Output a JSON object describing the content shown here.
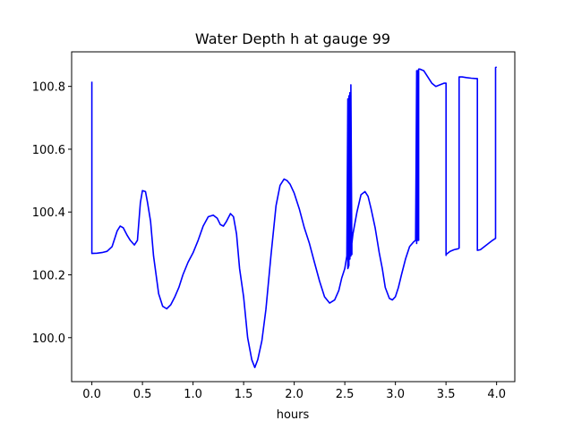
{
  "chart_data": {
    "type": "line",
    "title": "Water Depth h at gauge 99",
    "xlabel": "hours",
    "ylabel": "",
    "xlim": [
      -0.2,
      4.18
    ],
    "ylim": [
      99.86,
      100.91
    ],
    "xticks": [
      0.0,
      0.5,
      1.0,
      1.5,
      2.0,
      2.5,
      3.0,
      3.5,
      4.0
    ],
    "xtick_labels": [
      "0.0",
      "0.5",
      "1.0",
      "1.5",
      "2.0",
      "2.5",
      "3.0",
      "3.5",
      "4.0"
    ],
    "yticks": [
      100.0,
      100.2,
      100.4,
      100.6,
      100.8
    ],
    "ytick_labels": [
      "100.0",
      "100.2",
      "100.4",
      "100.6",
      "100.8"
    ],
    "grid": false,
    "legend": "none",
    "series": [
      {
        "color": "#0000ff",
        "x": [
          0.0,
          0.0,
          0.0,
          0.05,
          0.1,
          0.15,
          0.2,
          0.25,
          0.28,
          0.31,
          0.35,
          0.38,
          0.42,
          0.45,
          0.48,
          0.5,
          0.53,
          0.55,
          0.58,
          0.61,
          0.66,
          0.7,
          0.74,
          0.78,
          0.82,
          0.86,
          0.9,
          0.95,
          1.0,
          1.05,
          1.1,
          1.15,
          1.2,
          1.24,
          1.27,
          1.3,
          1.33,
          1.37,
          1.4,
          1.43,
          1.46,
          1.5,
          1.54,
          1.58,
          1.61,
          1.64,
          1.68,
          1.72,
          1.77,
          1.82,
          1.86,
          1.9,
          1.93,
          1.96,
          2.0,
          2.05,
          2.1,
          2.15,
          2.2,
          2.25,
          2.3,
          2.35,
          2.4,
          2.44,
          2.47,
          2.5,
          2.52,
          2.53,
          2.53,
          2.54,
          2.54,
          2.55,
          2.55,
          2.56,
          2.56,
          2.57,
          2.57,
          2.58,
          2.62,
          2.66,
          2.7,
          2.73,
          2.76,
          2.8,
          2.84,
          2.87,
          2.9,
          2.94,
          2.97,
          3.0,
          3.03,
          3.06,
          3.1,
          3.14,
          3.18,
          3.2,
          3.21,
          3.21,
          3.22,
          3.22,
          3.23,
          3.23,
          3.23,
          3.24,
          3.28,
          3.32,
          3.36,
          3.4,
          3.44,
          3.48,
          3.5,
          3.5,
          3.5,
          3.54,
          3.58,
          3.62,
          3.63,
          3.63,
          3.66,
          3.7,
          3.75,
          3.8,
          3.81,
          3.81,
          3.84,
          3.88,
          3.92,
          3.96,
          3.99,
          3.99,
          4.0
        ],
        "y": [
          100.815,
          100.27,
          100.268,
          100.269,
          100.271,
          100.275,
          100.29,
          100.34,
          100.355,
          100.35,
          100.325,
          100.31,
          100.295,
          100.31,
          100.43,
          100.468,
          100.465,
          100.43,
          100.37,
          100.26,
          100.14,
          100.1,
          100.092,
          100.105,
          100.13,
          100.16,
          100.2,
          100.24,
          100.27,
          100.31,
          100.355,
          100.385,
          100.39,
          100.38,
          100.36,
          100.355,
          100.37,
          100.395,
          100.385,
          100.33,
          100.22,
          100.13,
          100.0,
          99.93,
          99.905,
          99.93,
          99.99,
          100.09,
          100.26,
          100.42,
          100.485,
          100.505,
          100.5,
          100.488,
          100.46,
          100.41,
          100.35,
          100.3,
          100.24,
          100.18,
          100.13,
          100.11,
          100.12,
          100.15,
          100.19,
          100.22,
          100.26,
          100.76,
          100.22,
          100.23,
          100.77,
          100.25,
          100.78,
          100.26,
          100.805,
          100.265,
          100.3,
          100.33,
          100.4,
          100.455,
          100.465,
          100.45,
          100.41,
          100.35,
          100.27,
          100.22,
          100.16,
          100.125,
          100.12,
          100.13,
          100.16,
          100.2,
          100.25,
          100.29,
          100.305,
          100.31,
          100.85,
          100.3,
          100.85,
          100.31,
          100.855,
          100.31,
          100.855,
          100.855,
          100.85,
          100.83,
          100.81,
          100.8,
          100.805,
          100.81,
          100.81,
          100.262,
          100.265,
          100.275,
          100.28,
          100.283,
          100.285,
          100.83,
          100.83,
          100.828,
          100.826,
          100.825,
          100.825,
          100.278,
          100.28,
          100.29,
          100.3,
          100.31,
          100.316,
          100.86,
          100.862
        ]
      }
    ]
  }
}
